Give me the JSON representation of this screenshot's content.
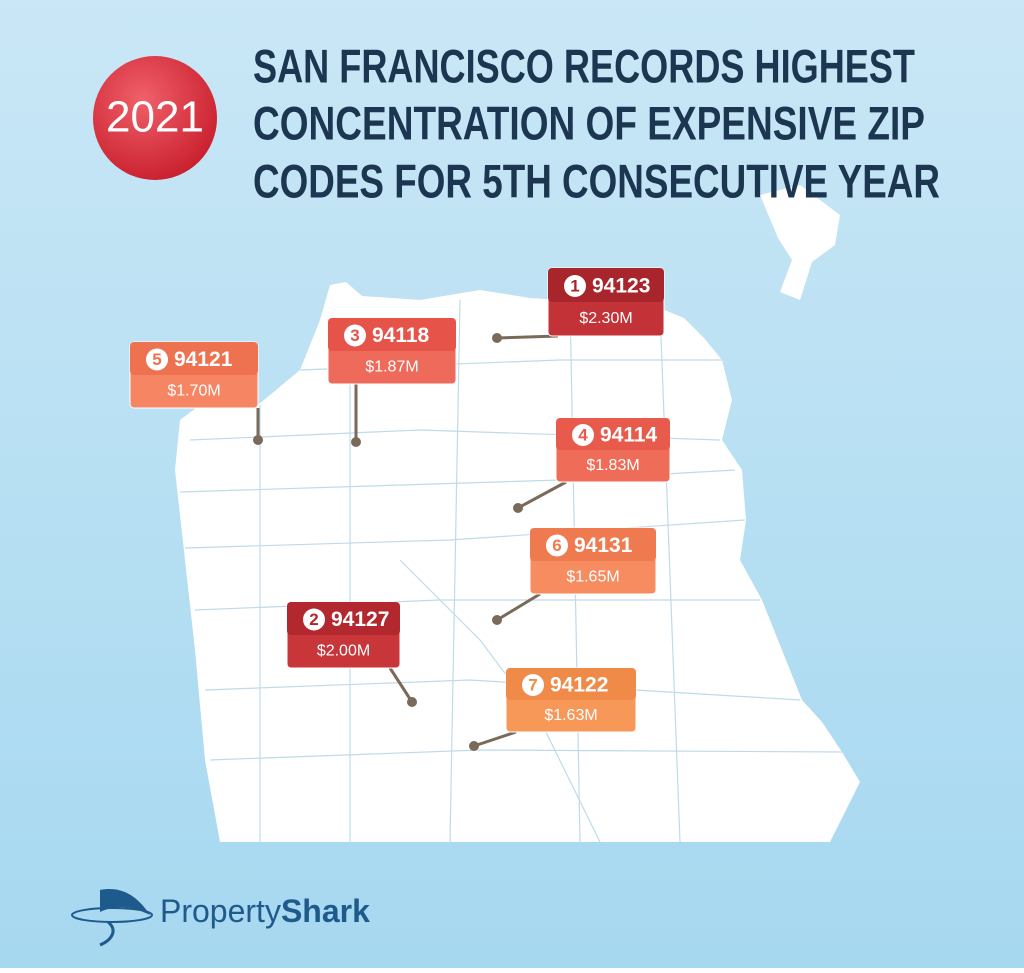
{
  "header": {
    "year": "2021",
    "title": [
      "SAN FRANCISCO RECORDS HIGHEST",
      "CONCENTRATION OF EXPENSIVE ZIP",
      "CODES FOR 5TH CONSECUTIVE YEAR"
    ]
  },
  "labels": [
    {
      "rank": "1",
      "zip": "94123",
      "price": "$2.30M"
    },
    {
      "rank": "2",
      "zip": "94127",
      "price": "$2.00M"
    },
    {
      "rank": "3",
      "zip": "94118",
      "price": "$1.87M"
    },
    {
      "rank": "4",
      "zip": "94114",
      "price": "$1.83M"
    },
    {
      "rank": "5",
      "zip": "94121",
      "price": "$1.70M"
    },
    {
      "rank": "6",
      "zip": "94131",
      "price": "$1.65M"
    },
    {
      "rank": "7",
      "zip": "94122",
      "price": "$1.63M"
    }
  ],
  "brand": {
    "first": "Property",
    "second": "Shark"
  }
}
